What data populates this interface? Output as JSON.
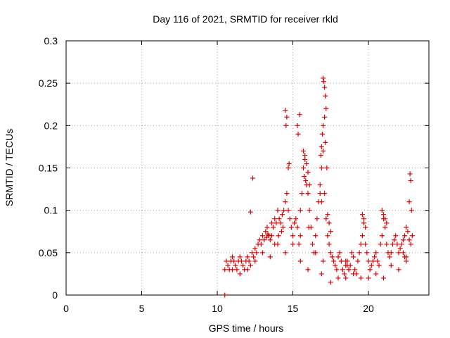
{
  "chart_data": {
    "type": "scatter",
    "title": "Day 116 of 2021, SRMTID for receiver rkld",
    "xlabel": "GPS time / hours",
    "ylabel": "SRMTID / TECUs",
    "xlim": [
      0,
      24
    ],
    "ylim": [
      0,
      0.3
    ],
    "x_ticks": [
      0,
      5,
      10,
      15,
      20
    ],
    "x_tick_labels": [
      "0",
      "5",
      "10",
      "15",
      "20"
    ],
    "y_ticks": [
      0,
      0.05,
      0.1,
      0.15,
      0.2,
      0.25,
      0.3
    ],
    "y_tick_labels": [
      "0",
      "0.05",
      "0.1",
      "0.15",
      "0.2",
      "0.25",
      "0.3"
    ],
    "grid": true,
    "marker": "plus",
    "color": "#dd0000",
    "series": [
      {
        "x": [
          10.5,
          10.5,
          10.6,
          10.7,
          10.8,
          10.9,
          11.0,
          11.1,
          11.2,
          11.3,
          11.4,
          11.5,
          11.6,
          11.7,
          11.8,
          11.9,
          12.0,
          12.1,
          12.2,
          12.3,
          12.4,
          12.5,
          12.6,
          12.7,
          12.8,
          12.9,
          13.0,
          13.1,
          13.2,
          13.3,
          13.4,
          13.5,
          13.6,
          13.7,
          13.8,
          13.9,
          14.0,
          14.1,
          14.2,
          14.3,
          14.4,
          14.5,
          14.6,
          14.7,
          14.8,
          14.9,
          15.0,
          15.1,
          15.2,
          15.3,
          15.4,
          15.5,
          15.6,
          15.7,
          15.8,
          15.9,
          16.0,
          16.1,
          16.2,
          16.3,
          16.4,
          16.5,
          16.6,
          16.7,
          16.8,
          16.9,
          17.0,
          17.1,
          17.2,
          17.3,
          17.4,
          17.5,
          17.6,
          17.7,
          17.8,
          17.9,
          18.0,
          18.1,
          18.2,
          18.3,
          18.4,
          18.5,
          18.6,
          18.7,
          18.8,
          18.9,
          19.0,
          19.1,
          19.2,
          19.3,
          19.4,
          19.5,
          19.6,
          19.7,
          19.8,
          19.9,
          20.0,
          20.1,
          20.2,
          20.3,
          20.4,
          20.5,
          20.6,
          20.7,
          20.8,
          20.9,
          21.0,
          21.1,
          21.2,
          21.3,
          21.4,
          21.5,
          21.6,
          21.7,
          21.8,
          21.9,
          22.0,
          22.1,
          22.2,
          22.3,
          22.4,
          22.5,
          22.6,
          22.7,
          22.8,
          22.9,
          12.35,
          12.2,
          14.5,
          14.6,
          14.55,
          15.3,
          15.45,
          15.35,
          17.0,
          17.05,
          17.1,
          17.15,
          17.2,
          17.0,
          17.1,
          17.15,
          16.9,
          16.95,
          16.85,
          17.25,
          22.75,
          22.8,
          22.7,
          22.85,
          14.7,
          14.75,
          15.7,
          15.8,
          15.9,
          16.0,
          15.75,
          15.85,
          16.1,
          16.8,
          16.9,
          17.3,
          17.4,
          17.5,
          18.5,
          18.6,
          18.7,
          19.6,
          19.7,
          19.8,
          20.9,
          21.0,
          21.1,
          21.2,
          22.3,
          22.4,
          22.5,
          11.0,
          11.5,
          12.0,
          12.5,
          13.0,
          13.5,
          14.0,
          14.5,
          15.0,
          15.5,
          16.0,
          16.5,
          17.0,
          17.5,
          18.0,
          18.5,
          19.0,
          19.5,
          20.0,
          20.5,
          21.0,
          21.5,
          22.0,
          22.5,
          16.9,
          15.5,
          16.05,
          13.25,
          13.35,
          13.6,
          13.8,
          14.05,
          14.25,
          14.35
        ],
        "y": [
          0.0,
          0.03,
          0.04,
          0.035,
          0.03,
          0.04,
          0.03,
          0.04,
          0.035,
          0.03,
          0.04,
          0.045,
          0.04,
          0.035,
          0.03,
          0.04,
          0.045,
          0.04,
          0.035,
          0.05,
          0.045,
          0.055,
          0.05,
          0.06,
          0.065,
          0.06,
          0.07,
          0.065,
          0.075,
          0.08,
          0.07,
          0.065,
          0.07,
          0.08,
          0.09,
          0.085,
          0.1,
          0.09,
          0.085,
          0.095,
          0.1,
          0.11,
          0.12,
          0.1,
          0.09,
          0.08,
          0.07,
          0.085,
          0.09,
          0.08,
          0.06,
          0.07,
          0.12,
          0.15,
          0.16,
          0.13,
          0.12,
          0.1,
          0.08,
          0.06,
          0.05,
          0.07,
          0.09,
          0.11,
          0.13,
          0.15,
          0.17,
          0.12,
          0.09,
          0.07,
          0.06,
          0.05,
          0.045,
          0.04,
          0.035,
          0.03,
          0.045,
          0.05,
          0.04,
          0.03,
          0.025,
          0.035,
          0.04,
          0.03,
          0.035,
          0.05,
          0.045,
          0.03,
          0.025,
          0.04,
          0.05,
          0.06,
          0.07,
          0.09,
          0.08,
          0.05,
          0.04,
          0.03,
          0.035,
          0.04,
          0.045,
          0.05,
          0.04,
          0.035,
          0.06,
          0.07,
          0.09,
          0.08,
          0.06,
          0.05,
          0.045,
          0.05,
          0.06,
          0.065,
          0.07,
          0.06,
          0.05,
          0.055,
          0.06,
          0.065,
          0.07,
          0.08,
          0.075,
          0.065,
          0.06,
          0.07,
          0.138,
          0.098,
          0.218,
          0.21,
          0.2,
          0.2,
          0.213,
          0.19,
          0.256,
          0.252,
          0.245,
          0.235,
          0.22,
          0.2,
          0.21,
          0.18,
          0.175,
          0.19,
          0.165,
          0.15,
          0.143,
          0.135,
          0.11,
          0.1,
          0.15,
          0.155,
          0.17,
          0.165,
          0.155,
          0.145,
          0.14,
          0.135,
          0.13,
          0.12,
          0.11,
          0.095,
          0.085,
          0.075,
          0.04,
          0.035,
          0.03,
          0.095,
          0.085,
          0.06,
          0.1,
          0.095,
          0.09,
          0.085,
          0.05,
          0.045,
          0.04,
          0.045,
          0.025,
          0.03,
          0.04,
          0.05,
          0.045,
          0.06,
          0.05,
          0.06,
          0.04,
          0.03,
          0.05,
          0.04,
          0.015,
          0.02,
          0.02,
          0.025,
          0.02,
          0.02,
          0.025,
          0.02,
          0.035,
          0.03,
          0.045,
          0.025,
          0.1,
          0.08,
          0.068,
          0.072,
          0.085,
          0.06,
          0.07,
          0.075,
          0.08
        ]
      }
    ]
  }
}
